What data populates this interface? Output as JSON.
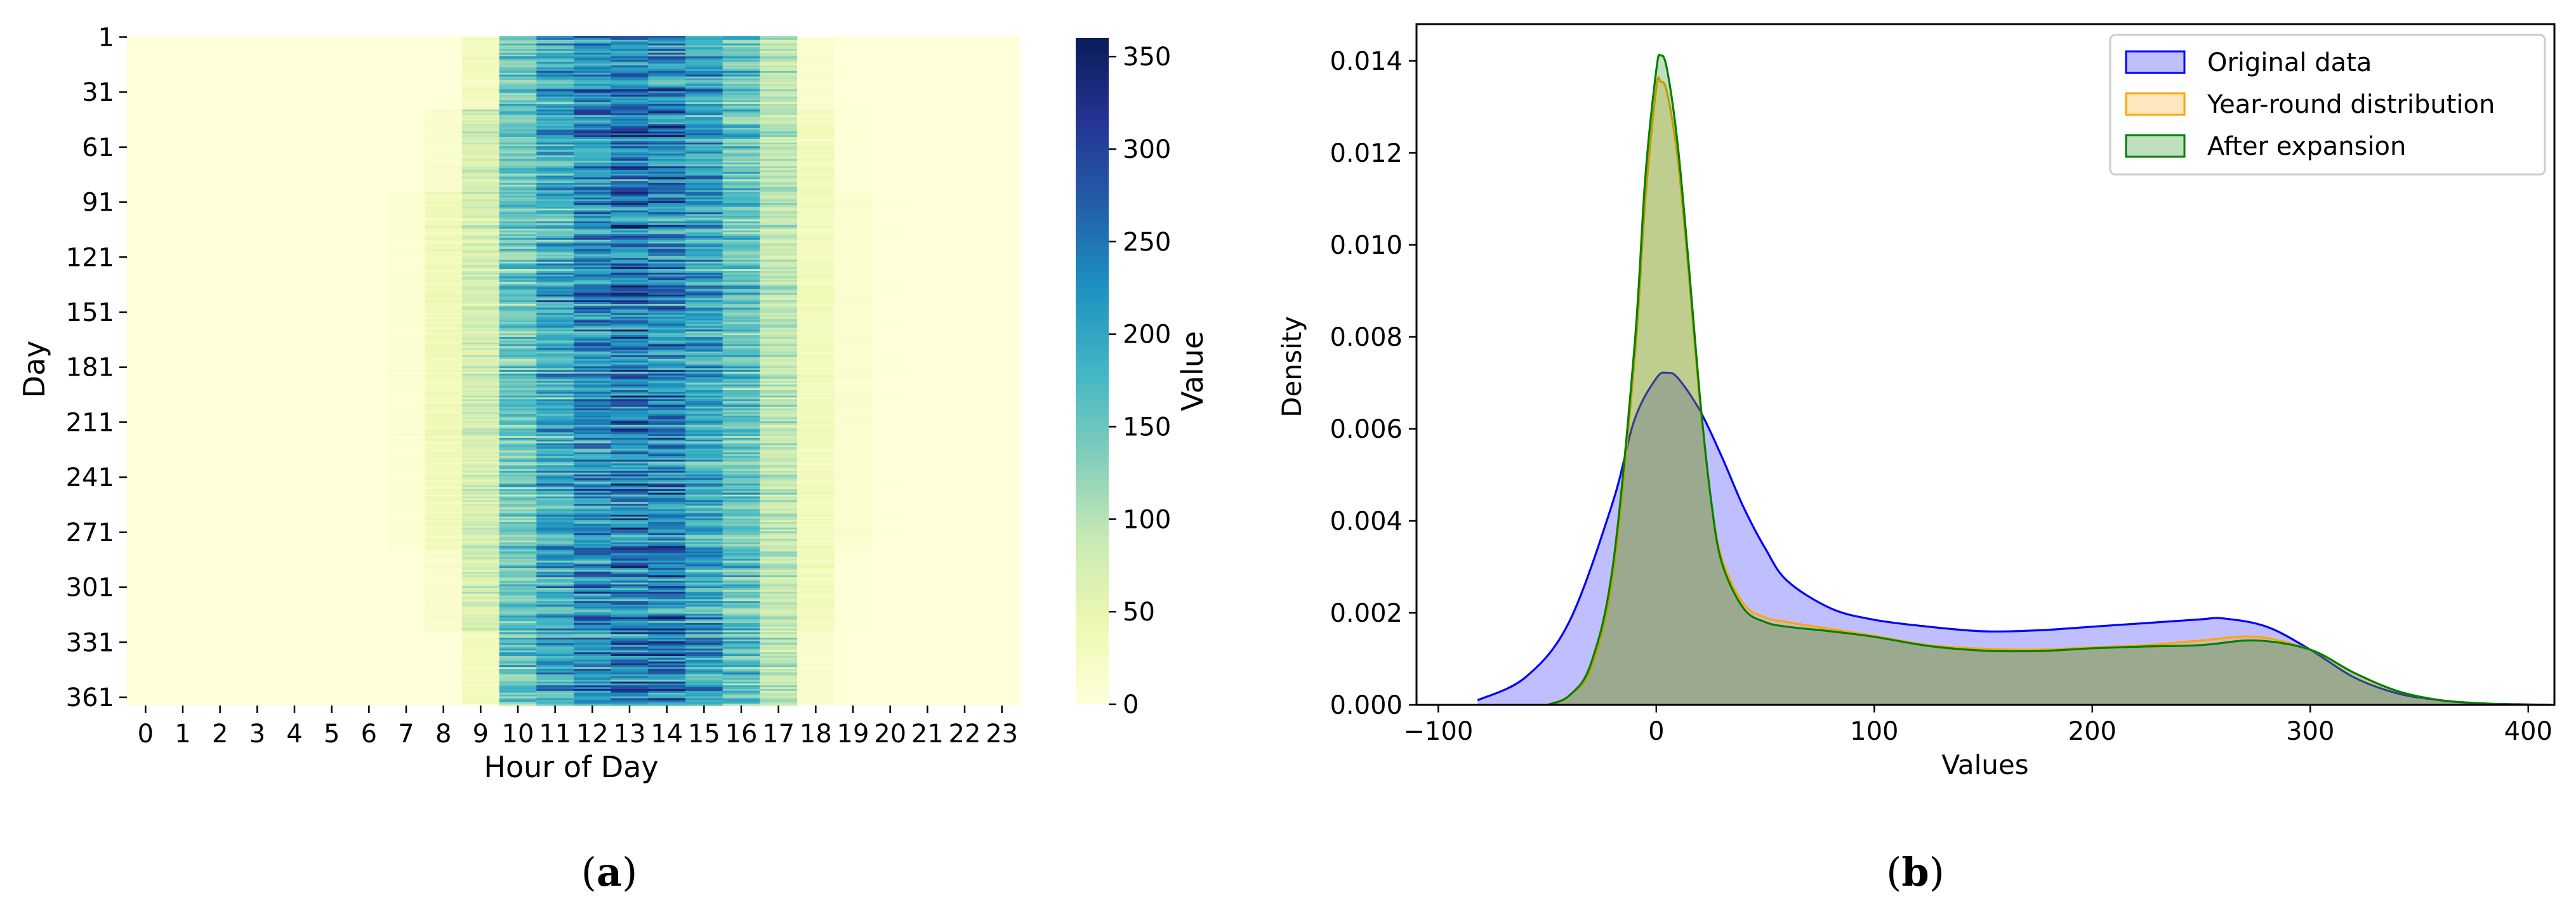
{
  "panels": {
    "a": {
      "label_letter": "a",
      "open": "(",
      "close": ")"
    },
    "b": {
      "label_letter": "b",
      "open": "(",
      "close": ")"
    }
  },
  "chart_data": [
    {
      "type": "heatmap",
      "title": "",
      "xlabel": "Hour of Day",
      "ylabel": "Day",
      "x_ticks": [
        "0",
        "1",
        "2",
        "3",
        "4",
        "5",
        "6",
        "7",
        "8",
        "9",
        "10",
        "11",
        "12",
        "13",
        "14",
        "15",
        "16",
        "17",
        "18",
        "19",
        "20",
        "21",
        "22",
        "23"
      ],
      "y_ticks": [
        "1",
        "31",
        "61",
        "91",
        "121",
        "151",
        "181",
        "211",
        "241",
        "271",
        "301",
        "331",
        "361"
      ],
      "rows": 365,
      "cols": 24,
      "colorbar": {
        "label": "Value",
        "range": [
          0,
          360
        ],
        "ticks": [
          "0",
          "50",
          "100",
          "150",
          "200",
          "250",
          "300",
          "350"
        ],
        "colormap": "YlGnBu"
      },
      "hour_mean_values": [
        0,
        0,
        0,
        0,
        0,
        0,
        5,
        25,
        45,
        95,
        190,
        245,
        285,
        305,
        300,
        255,
        200,
        120,
        40,
        15,
        5,
        0,
        0,
        0
      ],
      "active_hours_by_season": {
        "winter": [
          10,
          17
        ],
        "summer": [
          7,
          20
        ]
      }
    },
    {
      "type": "area",
      "title": "",
      "xlabel": "Values",
      "ylabel": "Density",
      "xlim": [
        -110,
        412
      ],
      "ylim": [
        0,
        0.0148
      ],
      "x_ticks": [
        "−100",
        "0",
        "100",
        "200",
        "300",
        "400"
      ],
      "y_ticks": [
        "0.000",
        "0.002",
        "0.004",
        "0.006",
        "0.008",
        "0.010",
        "0.012",
        "0.014"
      ],
      "legend_position": "top-right",
      "series": [
        {
          "name": "Original data",
          "color": "#0000ff",
          "fill": "#0000ff",
          "fill_opacity": 0.25,
          "x": [
            -82,
            -60,
            -40,
            -20,
            -10,
            0,
            5,
            10,
            20,
            30,
            40,
            50,
            60,
            80,
            100,
            125,
            150,
            175,
            200,
            225,
            250,
            260,
            280,
            300,
            320,
            340,
            360,
            380,
            400,
            410
          ],
          "y": [
            0.0001,
            0.0006,
            0.0018,
            0.0044,
            0.0062,
            0.0071,
            0.00722,
            0.0071,
            0.0064,
            0.0054,
            0.0043,
            0.0034,
            0.0027,
            0.0021,
            0.00185,
            0.0017,
            0.0016,
            0.00162,
            0.0017,
            0.00178,
            0.00186,
            0.00188,
            0.0017,
            0.0012,
            0.0006,
            0.00025,
            0.0001,
            3e-05,
            1e-05,
            0.0
          ]
        },
        {
          "name": "Year-round distribution",
          "color": "#ffa500",
          "fill": "#ffa500",
          "fill_opacity": 0.25,
          "x": [
            -50,
            -40,
            -30,
            -20,
            -10,
            -5,
            0,
            2,
            5,
            10,
            15,
            20,
            25,
            30,
            40,
            50,
            60,
            80,
            100,
            125,
            150,
            175,
            200,
            225,
            250,
            275,
            300,
            320,
            340,
            360,
            380,
            400,
            410
          ],
          "y": [
            0.0,
            0.0002,
            0.0008,
            0.0028,
            0.0075,
            0.011,
            0.0134,
            0.01355,
            0.0133,
            0.0118,
            0.0093,
            0.0066,
            0.0045,
            0.0032,
            0.0022,
            0.0019,
            0.0018,
            0.00165,
            0.0015,
            0.0013,
            0.00122,
            0.0012,
            0.00125,
            0.0013,
            0.0014,
            0.00148,
            0.0012,
            0.0007,
            0.0003,
            0.0001,
            3e-05,
            0.0,
            0.0
          ]
        },
        {
          "name": "After expansion",
          "color": "#008000",
          "fill": "#008000",
          "fill_opacity": 0.25,
          "x": [
            -50,
            -40,
            -30,
            -20,
            -10,
            -5,
            0,
            2,
            5,
            10,
            15,
            20,
            25,
            30,
            40,
            50,
            60,
            80,
            100,
            125,
            150,
            175,
            200,
            225,
            250,
            275,
            300,
            320,
            340,
            360,
            380,
            400,
            410
          ],
          "y": [
            0.0,
            0.0002,
            0.0009,
            0.003,
            0.0078,
            0.0115,
            0.0138,
            0.01412,
            0.0138,
            0.0121,
            0.0095,
            0.0067,
            0.0045,
            0.0031,
            0.0021,
            0.0018,
            0.0017,
            0.0016,
            0.00148,
            0.00128,
            0.00118,
            0.00117,
            0.00123,
            0.00127,
            0.0013,
            0.0014,
            0.0012,
            0.0007,
            0.0003,
            0.0001,
            3e-05,
            0.0,
            0.0
          ]
        }
      ]
    }
  ]
}
